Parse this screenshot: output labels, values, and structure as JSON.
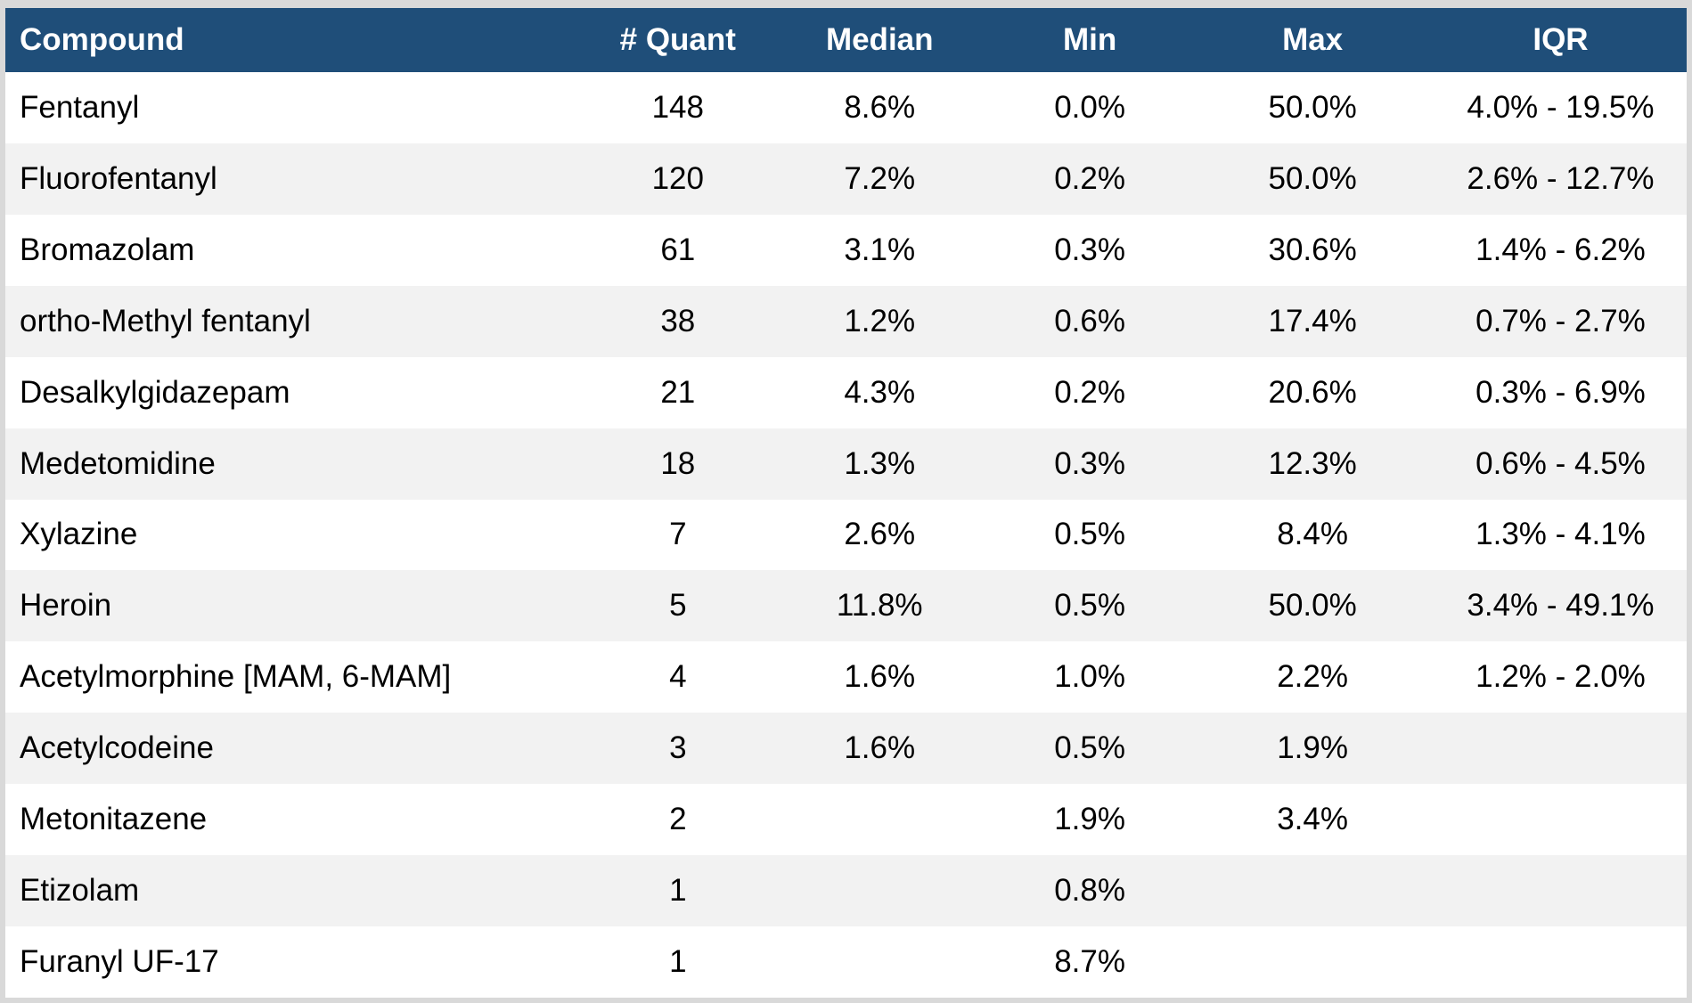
{
  "chart_data": {
    "type": "table",
    "columns": [
      "Compound",
      "# Quant",
      "Median",
      "Min",
      "Max",
      "IQR"
    ],
    "rows": [
      {
        "compound": "Fentanyl",
        "quant": "148",
        "median": "8.6%",
        "min": "0.0%",
        "max": "50.0%",
        "iqr": "4.0% - 19.5%"
      },
      {
        "compound": "Fluorofentanyl",
        "quant": "120",
        "median": "7.2%",
        "min": "0.2%",
        "max": "50.0%",
        "iqr": "2.6% - 12.7%"
      },
      {
        "compound": "Bromazolam",
        "quant": "61",
        "median": "3.1%",
        "min": "0.3%",
        "max": "30.6%",
        "iqr": "1.4% - 6.2%"
      },
      {
        "compound": "ortho-Methyl fentanyl",
        "quant": "38",
        "median": "1.2%",
        "min": "0.6%",
        "max": "17.4%",
        "iqr": "0.7% - 2.7%"
      },
      {
        "compound": "Desalkylgidazepam",
        "quant": "21",
        "median": "4.3%",
        "min": "0.2%",
        "max": "20.6%",
        "iqr": "0.3% - 6.9%"
      },
      {
        "compound": "Medetomidine",
        "quant": "18",
        "median": "1.3%",
        "min": "0.3%",
        "max": "12.3%",
        "iqr": "0.6% - 4.5%"
      },
      {
        "compound": "Xylazine",
        "quant": "7",
        "median": "2.6%",
        "min": "0.5%",
        "max": "8.4%",
        "iqr": "1.3% - 4.1%"
      },
      {
        "compound": "Heroin",
        "quant": "5",
        "median": "11.8%",
        "min": "0.5%",
        "max": "50.0%",
        "iqr": "3.4% - 49.1%"
      },
      {
        "compound": "Acetylmorphine [MAM, 6-MAM]",
        "quant": "4",
        "median": "1.6%",
        "min": "1.0%",
        "max": "2.2%",
        "iqr": "1.2% - 2.0%"
      },
      {
        "compound": "Acetylcodeine",
        "quant": "3",
        "median": "1.6%",
        "min": "0.5%",
        "max": "1.9%",
        "iqr": ""
      },
      {
        "compound": "Metonitazene",
        "quant": "2",
        "median": "",
        "min": "1.9%",
        "max": "3.4%",
        "iqr": ""
      },
      {
        "compound": "Etizolam",
        "quant": "1",
        "median": "",
        "min": "0.8%",
        "max": "",
        "iqr": ""
      },
      {
        "compound": "Furanyl UF-17",
        "quant": "1",
        "median": "",
        "min": "8.7%",
        "max": "",
        "iqr": ""
      }
    ],
    "layout_hints": {
      "striped": "odd rows white, even rows light gray",
      "grid": "no gridlines, alternating row fill only"
    },
    "colors": {
      "header_bg": "#1F4E79",
      "header_text": "#FFFFFF",
      "row_bg": "#FFFFFF",
      "row_alt_bg": "#F2F2F2",
      "body_text": "#000000",
      "outer_border": "#D9D9D9"
    }
  }
}
